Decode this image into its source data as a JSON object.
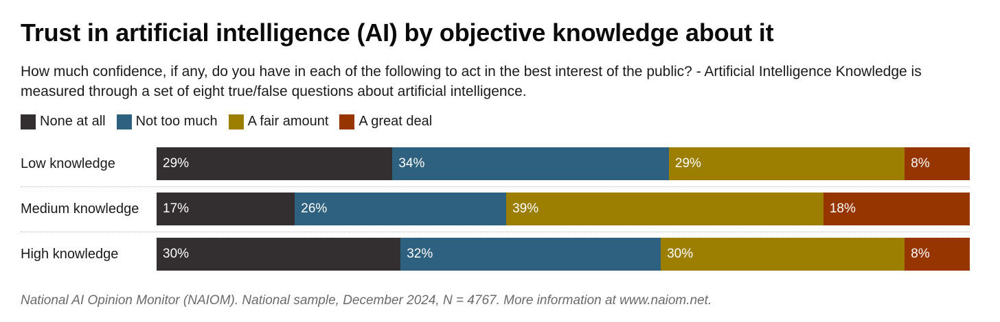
{
  "header": {
    "title": "Trust in artificial intelligence (AI) by objective knowledge about it",
    "subtitle": "How much confidence, if any, do you have in each of the following to act in the best interest of the public? - Artificial Intelligence Knowledge is measured through a set of eight true/false questions about artificial intelligence."
  },
  "footer": {
    "source": "National AI Opinion Monitor (NAIOM). National sample, December 2024, N = 4767. More information at www.naiom.net."
  },
  "chart_data": {
    "type": "bar",
    "orientation": "horizontal",
    "stacked": true,
    "normalized_percent": true,
    "title": "Trust in artificial intelligence (AI) by objective knowledge about it",
    "categories": [
      "Low knowledge",
      "Medium knowledge",
      "High knowledge"
    ],
    "series": [
      {
        "name": "None at all",
        "color": "#332f30",
        "values": [
          29,
          17,
          30
        ]
      },
      {
        "name": "Not too much",
        "color": "#2e6080",
        "values": [
          34,
          26,
          32
        ]
      },
      {
        "name": "A fair amount",
        "color": "#9c7f00",
        "values": [
          29,
          39,
          30
        ]
      },
      {
        "name": "A great deal",
        "color": "#963500",
        "values": [
          8,
          18,
          8
        ]
      }
    ],
    "legend_position": "top-left",
    "value_suffix": "%",
    "xlim": [
      0,
      100
    ],
    "grid": false
  }
}
